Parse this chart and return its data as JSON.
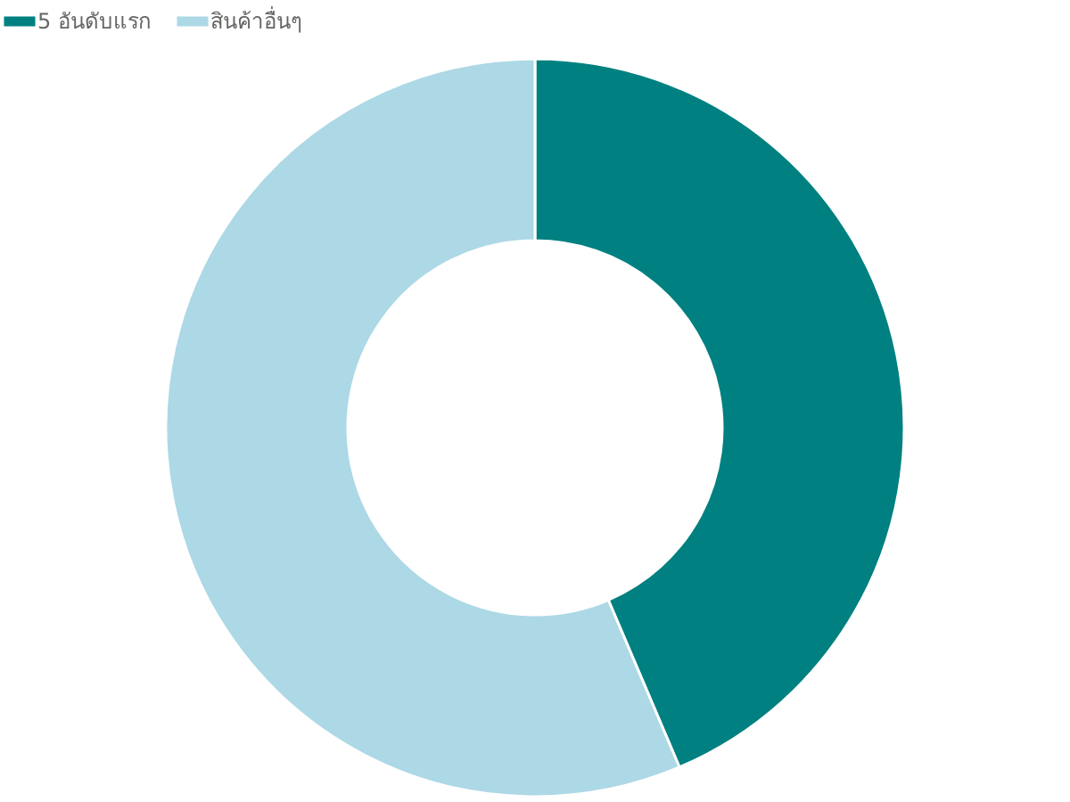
{
  "chart_data": {
    "type": "donut",
    "categories": [
      "5 อันดับแรก",
      "สินค้าอื่นๆ"
    ],
    "values": [
      43.6,
      56.4
    ],
    "colors": [
      "#008080",
      "#add8e6"
    ],
    "legend": "top"
  }
}
